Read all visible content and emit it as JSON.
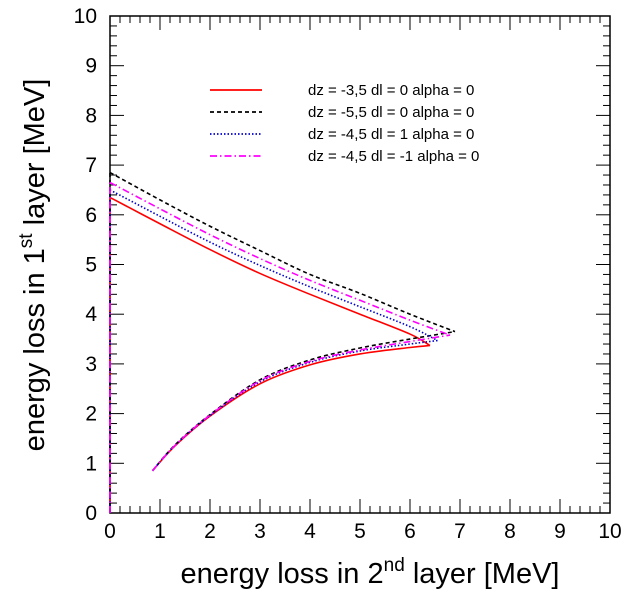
{
  "chart_data": {
    "type": "line",
    "title": "",
    "xlabel": {
      "pre": "energy loss in 2",
      "sup": "nd",
      "post": " layer [MeV]"
    },
    "ylabel": {
      "pre": "energy loss in 1",
      "sup": "st",
      "post": " layer [MeV]"
    },
    "xlim": [
      0,
      10
    ],
    "ylim": [
      0,
      10
    ],
    "xticks": [
      "0",
      "1",
      "2",
      "3",
      "4",
      "5",
      "6",
      "7",
      "8",
      "9",
      "10"
    ],
    "yticks": [
      "0",
      "1",
      "2",
      "3",
      "4",
      "5",
      "6",
      "7",
      "8",
      "9",
      "10"
    ],
    "grid": false,
    "legend": "top-center",
    "series": [
      {
        "name": "dz = -3,5 dl = 0 alpha = 0",
        "color": "#ff0000",
        "style": "solid",
        "lower": [
          [
            0.85,
            0.85
          ],
          [
            1.3,
            1.35
          ],
          [
            2,
            1.95
          ],
          [
            3,
            2.6
          ],
          [
            4,
            2.98
          ],
          [
            5,
            3.2
          ],
          [
            6,
            3.33
          ],
          [
            6.4,
            3.37
          ]
        ],
        "upper": [
          [
            0,
            6.35
          ],
          [
            1,
            5.82
          ],
          [
            2,
            5.3
          ],
          [
            3,
            4.82
          ],
          [
            4,
            4.4
          ],
          [
            5,
            4.0
          ],
          [
            6,
            3.6
          ],
          [
            6.4,
            3.37
          ]
        ],
        "start_y": 6.35
      },
      {
        "name": "dz = -5,5 dl = 0 alpha = 0",
        "color": "#000000",
        "style": "dashed",
        "lower": [
          [
            0.85,
            0.85
          ],
          [
            1.3,
            1.37
          ],
          [
            2,
            1.98
          ],
          [
            3,
            2.68
          ],
          [
            4,
            3.08
          ],
          [
            5,
            3.32
          ],
          [
            6,
            3.5
          ],
          [
            6.9,
            3.65
          ]
        ],
        "upper": [
          [
            0,
            6.85
          ],
          [
            1,
            6.3
          ],
          [
            2,
            5.77
          ],
          [
            3,
            5.28
          ],
          [
            4,
            4.8
          ],
          [
            5,
            4.42
          ],
          [
            6,
            4.0
          ],
          [
            6.9,
            3.65
          ]
        ],
        "start_y": 6.85
      },
      {
        "name": "dz = -4,5 dl = 1 alpha = 0",
        "color": "#0000cc",
        "style": "dotted",
        "lower": [
          [
            0.85,
            0.85
          ],
          [
            1.3,
            1.36
          ],
          [
            2,
            1.96
          ],
          [
            3,
            2.64
          ],
          [
            4,
            3.03
          ],
          [
            5,
            3.26
          ],
          [
            6,
            3.4
          ],
          [
            6.55,
            3.47
          ]
        ],
        "upper": [
          [
            0,
            6.5
          ],
          [
            1,
            5.97
          ],
          [
            2,
            5.45
          ],
          [
            3,
            4.98
          ],
          [
            4,
            4.55
          ],
          [
            5,
            4.15
          ],
          [
            6,
            3.75
          ],
          [
            6.55,
            3.47
          ]
        ],
        "start_y": 6.5
      },
      {
        "name": "dz = -4,5 dl = -1 alpha = 0",
        "color": "#ff00ff",
        "style": "dashdot",
        "lower": [
          [
            0.85,
            0.85
          ],
          [
            1.3,
            1.36
          ],
          [
            2,
            1.97
          ],
          [
            3,
            2.66
          ],
          [
            4,
            3.05
          ],
          [
            5,
            3.28
          ],
          [
            6,
            3.45
          ],
          [
            6.8,
            3.58
          ]
        ],
        "upper": [
          [
            0,
            6.65
          ],
          [
            1,
            6.12
          ],
          [
            2,
            5.6
          ],
          [
            3,
            5.12
          ],
          [
            4,
            4.68
          ],
          [
            5,
            4.28
          ],
          [
            6,
            3.88
          ],
          [
            6.8,
            3.58
          ]
        ],
        "start_y": 6.65
      }
    ]
  }
}
